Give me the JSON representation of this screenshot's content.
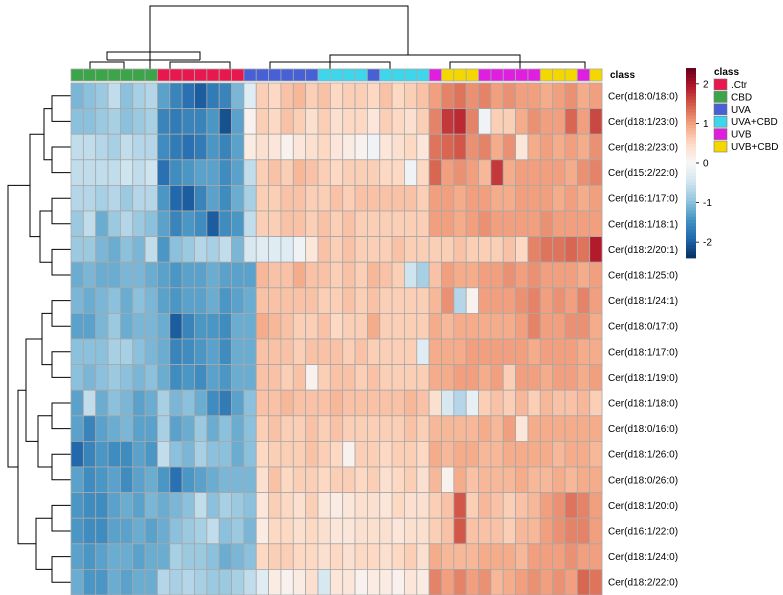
{
  "chart_data": {
    "type": "heatmap",
    "title": "",
    "class_header": "class",
    "legend": {
      "title": "class",
      "entries": [
        {
          "name": ".Ctr",
          "color": "#e8184e"
        },
        {
          "name": "CBD",
          "color": "#3ca54a"
        },
        {
          "name": "UVA",
          "color": "#4760d6"
        },
        {
          "name": "UVA+CBD",
          "color": "#3dd6ec"
        },
        {
          "name": "UVB",
          "color": "#e01ee0"
        },
        {
          "name": "UVB+CBD",
          "color": "#f5d700"
        }
      ]
    },
    "color_scale": {
      "ticks": [
        2,
        1,
        0,
        -1,
        -2
      ],
      "range": [
        -2.4,
        2.4
      ],
      "colors": [
        "#053061",
        "#2166ac",
        "#4393c3",
        "#92c5de",
        "#d1e5f0",
        "#f7f7f7",
        "#fddbc7",
        "#f4a582",
        "#d6604d",
        "#b2182b",
        "#67001f"
      ]
    },
    "column_classes": [
      "CBD",
      "CBD",
      "CBD",
      "CBD",
      "CBD",
      "CBD",
      "CBD",
      ".Ctr",
      ".Ctr",
      ".Ctr",
      ".Ctr",
      ".Ctr",
      ".Ctr",
      ".Ctr",
      "UVA",
      "UVA",
      "UVA",
      "UVA",
      "UVA",
      "UVA",
      "UVA+CBD",
      "UVA+CBD",
      "UVA+CBD",
      "UVA+CBD",
      "UVA",
      "UVA+CBD",
      "UVA+CBD",
      "UVA+CBD",
      "UVA+CBD",
      "UVB",
      "UVB+CBD",
      "UVB+CBD",
      "UVB+CBD",
      "UVB",
      "UVB",
      "UVB",
      "UVB",
      "UVB",
      "UVB+CBD",
      "UVB+CBD",
      "UVB+CBD",
      "UVB",
      "UVB+CBD"
    ],
    "rows": [
      {
        "name": "Cer(d18:0/18:0)",
        "values": [
          -1.1,
          -1.0,
          -0.9,
          -0.6,
          -1.0,
          -0.8,
          -0.7,
          -1.3,
          -1.6,
          -1.8,
          -2.0,
          -1.7,
          -1.6,
          -1.1,
          -0.3,
          0.6,
          0.5,
          0.7,
          0.8,
          0.6,
          0.7,
          0.5,
          0.6,
          0.6,
          0.5,
          0.7,
          0.5,
          0.6,
          0.7,
          1.0,
          1.2,
          1.3,
          1.1,
          1.2,
          1.0,
          1.1,
          1.0,
          1.0,
          0.9,
          1.0,
          1.1,
          0.9,
          1.0
        ]
      },
      {
        "name": "Cer(d18:1/23:0)",
        "values": [
          -1.0,
          -1.0,
          -0.9,
          -0.8,
          -1.0,
          -0.9,
          -0.8,
          -1.6,
          -1.7,
          -1.6,
          -1.6,
          -1.4,
          -2.1,
          -1.3,
          0.1,
          0.6,
          0.5,
          0.7,
          0.6,
          0.4,
          0.6,
          0.4,
          0.5,
          0.5,
          0.3,
          0.6,
          0.5,
          0.4,
          0.6,
          1.2,
          1.7,
          1.8,
          1.2,
          -0.1,
          0.6,
          0.6,
          0.9,
          1.1,
          1.0,
          1.0,
          1.4,
          1.0,
          1.6
        ]
      },
      {
        "name": "Cer(d18:2/23:0)",
        "values": [
          -0.6,
          -0.6,
          -0.7,
          -0.8,
          -0.6,
          -0.7,
          -0.7,
          -1.5,
          -1.7,
          -1.8,
          -1.7,
          -1.4,
          -1.6,
          -1.3,
          0.2,
          0.4,
          0.3,
          0.1,
          0.3,
          0.4,
          0.5,
          0.3,
          0.2,
          0.1,
          -0.1,
          0.3,
          0.4,
          0.5,
          0.3,
          1.3,
          1.4,
          1.5,
          1.1,
          1.2,
          0.9,
          1.1,
          0.3,
          0.9,
          1.0,
          0.9,
          1.0,
          0.9,
          1.1
        ]
      },
      {
        "name": "Cer(d15:2/22:0)",
        "values": [
          -0.6,
          -0.6,
          -0.6,
          -0.6,
          -0.5,
          -0.6,
          -0.5,
          -1.8,
          -1.5,
          -1.4,
          -1.3,
          -1.3,
          -1.5,
          -1.3,
          -0.6,
          0.6,
          0.7,
          0.6,
          0.8,
          0.7,
          0.6,
          0.5,
          0.6,
          0.6,
          0.6,
          0.5,
          0.5,
          -0.1,
          0.5,
          1.4,
          1.0,
          1.1,
          1.0,
          0.8,
          1.7,
          0.9,
          1.0,
          1.0,
          1.0,
          1.0,
          0.9,
          1.1,
          1.2
        ]
      },
      {
        "name": "Cer(d16:1/17:0)",
        "values": [
          -0.7,
          -0.7,
          -0.8,
          -0.7,
          -0.9,
          -0.7,
          -0.7,
          -1.4,
          -1.9,
          -2.0,
          -1.6,
          -1.3,
          -1.5,
          -1.2,
          -0.8,
          0.6,
          0.6,
          0.7,
          0.7,
          0.6,
          0.6,
          0.7,
          0.6,
          0.7,
          0.7,
          0.7,
          0.7,
          0.7,
          0.6,
          1.0,
          1.0,
          0.9,
          1.0,
          1.0,
          0.9,
          0.9,
          1.0,
          1.0,
          1.0,
          0.9,
          1.0,
          0.9,
          1.0
        ]
      },
      {
        "name": "Cer(d18:1/18:1)",
        "values": [
          -0.9,
          -0.6,
          -1.2,
          -0.9,
          -0.7,
          -0.9,
          -1.0,
          -1.3,
          -1.6,
          -1.4,
          -1.5,
          -2.0,
          -1.5,
          -1.4,
          -0.6,
          0.6,
          0.6,
          0.7,
          0.7,
          0.6,
          0.7,
          0.6,
          0.7,
          0.6,
          0.6,
          0.6,
          0.6,
          0.6,
          0.6,
          1.0,
          1.0,
          0.9,
          1.0,
          1.1,
          1.0,
          1.0,
          1.0,
          1.0,
          1.1,
          1.0,
          1.0,
          1.0,
          1.0
        ]
      },
      {
        "name": "Cer(d18:2/20:1)",
        "values": [
          -0.9,
          -0.9,
          -1.1,
          -1.2,
          -1.0,
          -1.1,
          -0.6,
          -1.4,
          -1.0,
          -0.9,
          -0.7,
          -0.8,
          -0.6,
          -1.1,
          -0.4,
          -0.3,
          -0.3,
          -0.3,
          -0.1,
          0.3,
          0.7,
          0.6,
          0.7,
          0.6,
          0.6,
          0.6,
          0.7,
          0.6,
          0.6,
          0.6,
          0.6,
          0.7,
          0.6,
          0.6,
          0.6,
          0.7,
          0.5,
          1.2,
          1.3,
          1.3,
          1.4,
          1.3,
          1.9
        ]
      },
      {
        "name": "Cer(d18:1/25:0)",
        "values": [
          -1.2,
          -1.1,
          -1.2,
          -1.2,
          -1.1,
          -1.1,
          -1.2,
          -1.3,
          -1.4,
          -1.3,
          -1.3,
          -1.2,
          -1.3,
          -1.3,
          -1.3,
          0.8,
          0.7,
          0.7,
          0.9,
          0.7,
          0.7,
          0.6,
          0.7,
          0.6,
          0.8,
          0.7,
          0.6,
          -0.5,
          -0.8,
          0.7,
          1.0,
          0.9,
          0.9,
          1.0,
          1.0,
          1.1,
          1.0,
          1.1,
          1.0,
          1.0,
          1.0,
          0.9,
          1.0
        ]
      },
      {
        "name": "Cer(d18:1/24:1)",
        "values": [
          -1.1,
          -1.2,
          -1.1,
          -1.0,
          -1.2,
          -1.0,
          -1.1,
          -1.3,
          -1.4,
          -1.3,
          -1.3,
          -1.2,
          -1.4,
          -1.3,
          -1.2,
          0.7,
          0.7,
          0.7,
          0.7,
          0.7,
          0.6,
          0.6,
          0.7,
          0.6,
          0.7,
          0.6,
          0.6,
          0.6,
          0.6,
          0.8,
          1.1,
          -0.7,
          0.1,
          1.0,
          1.0,
          1.0,
          1.1,
          1.2,
          1.0,
          1.1,
          1.0,
          1.2,
          1.0
        ]
      },
      {
        "name": "Cer(d18:0/17:0)",
        "values": [
          -1.3,
          -1.3,
          -1.1,
          -0.9,
          -1.2,
          -1.1,
          -1.1,
          -1.2,
          -2.0,
          -1.6,
          -1.4,
          -1.4,
          -1.5,
          -1.2,
          -1.2,
          0.9,
          0.8,
          0.7,
          0.6,
          0.6,
          0.7,
          0.5,
          0.6,
          0.6,
          0.9,
          0.6,
          0.6,
          0.6,
          0.6,
          0.9,
          0.8,
          0.9,
          0.9,
          0.9,
          0.9,
          0.9,
          1.0,
          1.2,
          1.0,
          1.0,
          1.1,
          1.1,
          0.9
        ]
      },
      {
        "name": "Cer(d18:1/17:0)",
        "values": [
          -1.0,
          -1.0,
          -1.0,
          -0.8,
          -0.8,
          -1.0,
          -1.1,
          -1.2,
          -1.6,
          -1.5,
          -1.4,
          -1.3,
          -1.5,
          -1.2,
          -1.2,
          0.7,
          0.7,
          0.7,
          0.6,
          0.7,
          0.7,
          0.7,
          0.6,
          0.7,
          0.6,
          0.6,
          0.6,
          0.6,
          -0.3,
          0.9,
          0.9,
          0.9,
          1.0,
          1.0,
          1.0,
          1.0,
          1.0,
          0.9,
          1.0,
          1.0,
          1.0,
          0.9,
          0.9
        ]
      },
      {
        "name": "Cer(d18:1/19:0)",
        "values": [
          -1.0,
          -1.1,
          -1.0,
          -0.9,
          -1.0,
          -1.1,
          -1.0,
          -1.2,
          -1.5,
          -1.4,
          -1.5,
          -1.3,
          -1.4,
          -1.2,
          -1.2,
          0.7,
          0.7,
          0.6,
          0.7,
          0.1,
          0.6,
          0.7,
          0.7,
          0.6,
          0.7,
          0.6,
          0.6,
          0.6,
          0.6,
          0.9,
          0.9,
          1.0,
          1.0,
          0.9,
          1.0,
          0.6,
          1.0,
          1.0,
          0.9,
          1.0,
          1.0,
          0.9,
          1.0
        ]
      },
      {
        "name": "Cer(d18:1/18:0)",
        "values": [
          -1.3,
          -0.6,
          -1.2,
          -1.0,
          -1.1,
          -1.3,
          -1.2,
          -0.8,
          -1.1,
          -1.0,
          -1.2,
          -1.5,
          -1.7,
          -1.3,
          -1.0,
          0.7,
          0.7,
          0.8,
          0.7,
          0.7,
          0.7,
          0.8,
          0.7,
          0.7,
          0.7,
          0.7,
          0.7,
          0.8,
          0.7,
          0.4,
          -0.4,
          -0.7,
          -0.2,
          0.6,
          0.7,
          0.6,
          0.8,
          0.6,
          0.8,
          0.7,
          0.7,
          0.8,
          0.6
        ]
      },
      {
        "name": "Cer(d18:0/16:0)",
        "values": [
          -1.3,
          -1.6,
          -1.3,
          -1.2,
          -1.1,
          -1.3,
          -1.3,
          -0.8,
          -1.3,
          -1.2,
          -0.9,
          -1.2,
          -1.0,
          -1.2,
          -1.0,
          0.6,
          0.7,
          0.6,
          0.6,
          0.7,
          0.6,
          0.7,
          0.6,
          0.6,
          0.6,
          0.6,
          0.6,
          0.7,
          0.6,
          0.8,
          0.8,
          0.8,
          0.8,
          0.9,
          0.8,
          1.0,
          0.3,
          0.9,
          0.9,
          0.9,
          0.9,
          0.9,
          0.9
        ]
      },
      {
        "name": "Cer(d18:1/26:0)",
        "values": [
          -1.9,
          -1.6,
          -1.4,
          -1.5,
          -1.5,
          -1.3,
          -1.4,
          -0.6,
          -1.0,
          -1.1,
          -0.8,
          -1.0,
          -1.0,
          -1.2,
          -1.0,
          0.5,
          0.6,
          0.6,
          0.6,
          0.7,
          0.6,
          0.5,
          0.1,
          0.6,
          0.6,
          0.5,
          0.6,
          0.6,
          0.5,
          0.9,
          0.8,
          0.9,
          0.9,
          0.8,
          0.8,
          0.9,
          0.9,
          0.9,
          0.9,
          0.8,
          0.9,
          0.9,
          0.8
        ]
      },
      {
        "name": "Cer(d18:0/26:0)",
        "values": [
          -1.3,
          -1.5,
          -1.4,
          -1.3,
          -1.5,
          -1.3,
          -1.2,
          -1.4,
          -1.8,
          -1.4,
          -1.3,
          -1.2,
          -1.1,
          -1.1,
          -1.1,
          0.4,
          0.7,
          0.5,
          0.6,
          0.6,
          0.5,
          0.6,
          0.6,
          0.5,
          0.6,
          0.4,
          0.5,
          0.6,
          0.4,
          0.8,
          0.1,
          0.9,
          0.7,
          0.8,
          0.8,
          0.8,
          0.9,
          0.8,
          0.8,
          0.9,
          0.8,
          0.9,
          0.9
        ]
      },
      {
        "name": "Cer(d18:1/20:0)",
        "values": [
          -1.4,
          -1.5,
          -1.5,
          -1.3,
          -1.2,
          -1.3,
          -1.1,
          -1.2,
          -1.1,
          -1.0,
          -0.6,
          -1.0,
          -0.8,
          -0.9,
          -1.0,
          0.3,
          0.6,
          0.5,
          0.4,
          0.6,
          0.3,
          0.2,
          0.3,
          0.4,
          0.4,
          0.3,
          0.5,
          0.4,
          0.4,
          0.6,
          0.7,
          1.5,
          0.6,
          0.8,
          0.7,
          0.6,
          0.7,
          0.8,
          1.0,
          1.1,
          1.3,
          1.2,
          1.0
        ]
      },
      {
        "name": "Cer(d16:1/22:0)",
        "values": [
          -1.4,
          -1.5,
          -1.5,
          -1.3,
          -1.3,
          -1.2,
          -1.3,
          -1.2,
          -1.0,
          -0.9,
          -0.8,
          -0.6,
          -1.0,
          -0.9,
          -1.1,
          0.2,
          0.5,
          0.5,
          0.4,
          0.5,
          0.4,
          0.3,
          0.3,
          0.4,
          0.4,
          0.4,
          0.3,
          0.4,
          0.4,
          0.6,
          0.7,
          1.5,
          0.7,
          0.7,
          0.7,
          0.6,
          0.8,
          0.8,
          1.0,
          1.1,
          1.2,
          1.2,
          1.0
        ]
      },
      {
        "name": "Cer(d18:1/24:0)",
        "values": [
          -1.3,
          -1.4,
          -1.3,
          -1.2,
          -1.2,
          -1.3,
          -1.2,
          -1.2,
          -0.8,
          -0.9,
          -0.9,
          -1.0,
          -1.2,
          -1.1,
          -1.0,
          0.5,
          0.6,
          0.6,
          0.5,
          0.5,
          0.4,
          0.5,
          0.4,
          0.5,
          0.5,
          0.4,
          0.5,
          0.6,
          0.4,
          0.9,
          0.8,
          0.8,
          0.8,
          0.9,
          0.9,
          0.9,
          0.8,
          1.0,
          1.0,
          1.0,
          1.1,
          1.0,
          1.0
        ]
      },
      {
        "name": "Cer(d18:2/22:0)",
        "values": [
          -1.2,
          -1.4,
          -1.4,
          -1.2,
          -1.3,
          -1.2,
          -1.2,
          -0.7,
          -0.8,
          -0.7,
          -0.8,
          -0.9,
          -0.9,
          -0.8,
          -0.6,
          -0.3,
          0.2,
          0.1,
          0.2,
          0.4,
          -0.4,
          0.3,
          0.3,
          0.1,
          0.2,
          0.2,
          0.1,
          0.3,
          0.2,
          1.2,
          1.0,
          1.2,
          1.0,
          1.1,
          0.8,
          0.9,
          1.0,
          1.1,
          1.0,
          1.1,
          1.0,
          1.4,
          1.3
        ]
      }
    ]
  }
}
